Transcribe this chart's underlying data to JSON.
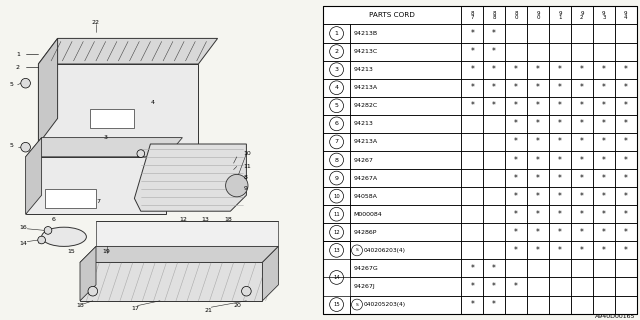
{
  "diagram_id": "A940D00165",
  "bg_color": "#f5f5f0",
  "table_bg": "#ffffff",
  "table": {
    "col_headers": [
      "PARTS CORD",
      "8\n7",
      "8\n8",
      "8\n0",
      "9\n0",
      "9\n1",
      "9\n2",
      "9\n3",
      "9\n4"
    ],
    "rows": [
      {
        "num": "1",
        "part": "94213B",
        "s_prefix": false,
        "marks": [
          1,
          1,
          0,
          0,
          0,
          0,
          0,
          0
        ]
      },
      {
        "num": "2",
        "part": "94213C",
        "s_prefix": false,
        "marks": [
          1,
          1,
          0,
          0,
          0,
          0,
          0,
          0
        ]
      },
      {
        "num": "3",
        "part": "94213",
        "s_prefix": false,
        "marks": [
          1,
          1,
          1,
          1,
          1,
          1,
          1,
          1
        ]
      },
      {
        "num": "4",
        "part": "94213A",
        "s_prefix": false,
        "marks": [
          1,
          1,
          1,
          1,
          1,
          1,
          1,
          1
        ]
      },
      {
        "num": "5",
        "part": "94282C",
        "s_prefix": false,
        "marks": [
          1,
          1,
          1,
          1,
          1,
          1,
          1,
          1
        ]
      },
      {
        "num": "6",
        "part": "94213",
        "s_prefix": false,
        "marks": [
          0,
          0,
          1,
          1,
          1,
          1,
          1,
          1
        ]
      },
      {
        "num": "7",
        "part": "94213A",
        "s_prefix": false,
        "marks": [
          0,
          0,
          1,
          1,
          1,
          1,
          1,
          1
        ]
      },
      {
        "num": "8",
        "part": "94267",
        "s_prefix": false,
        "marks": [
          0,
          0,
          1,
          1,
          1,
          1,
          1,
          1
        ]
      },
      {
        "num": "9",
        "part": "94267A",
        "s_prefix": false,
        "marks": [
          0,
          0,
          1,
          1,
          1,
          1,
          1,
          1
        ]
      },
      {
        "num": "10",
        "part": "94058A",
        "s_prefix": false,
        "marks": [
          0,
          0,
          1,
          1,
          1,
          1,
          1,
          1
        ]
      },
      {
        "num": "11",
        "part": "M000084",
        "s_prefix": false,
        "marks": [
          0,
          0,
          1,
          1,
          1,
          1,
          1,
          1
        ]
      },
      {
        "num": "12",
        "part": "94286P",
        "s_prefix": false,
        "marks": [
          0,
          0,
          1,
          1,
          1,
          1,
          1,
          1
        ]
      },
      {
        "num": "13",
        "part": "040206203(4)",
        "s_prefix": true,
        "marks": [
          0,
          0,
          1,
          1,
          1,
          1,
          1,
          1
        ]
      },
      {
        "num": "14",
        "part": "94267G",
        "s_prefix": false,
        "marks": [
          1,
          1,
          0,
          0,
          0,
          0,
          0,
          0
        ],
        "subrow": true
      },
      {
        "num": "14",
        "part": "94267J",
        "s_prefix": false,
        "marks": [
          1,
          1,
          1,
          0,
          0,
          0,
          0,
          0
        ],
        "subrow": true
      },
      {
        "num": "15",
        "part": "040205203(4)",
        "s_prefix": true,
        "marks": [
          1,
          1,
          0,
          0,
          0,
          0,
          0,
          0
        ]
      }
    ],
    "row14_merged": true
  }
}
